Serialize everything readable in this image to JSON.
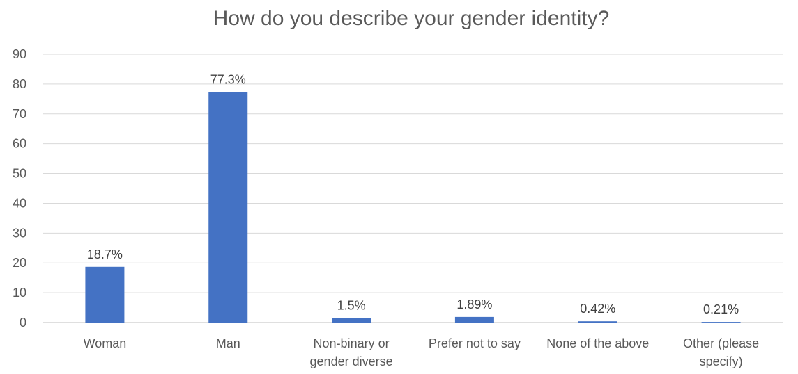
{
  "chart_data": {
    "type": "bar",
    "title": "How do you describe your gender identity?",
    "categories": [
      [
        "Woman"
      ],
      [
        "Man"
      ],
      [
        "Non-binary or",
        "gender diverse"
      ],
      [
        "Prefer not to say"
      ],
      [
        "None of the above"
      ],
      [
        "Other (please",
        "specify)"
      ]
    ],
    "values": [
      18.7,
      77.3,
      1.5,
      1.89,
      0.42,
      0.21
    ],
    "data_labels": [
      "18.7%",
      "77.3%",
      "1.5%",
      "1.89%",
      "0.42%",
      "0.21%"
    ],
    "ylim": [
      0,
      90
    ],
    "yticks": [
      0,
      10,
      20,
      30,
      40,
      50,
      60,
      70,
      80,
      90
    ],
    "grid": true,
    "legend": "none",
    "bar_color": "#4472C4",
    "xlabel": "",
    "ylabel": ""
  }
}
